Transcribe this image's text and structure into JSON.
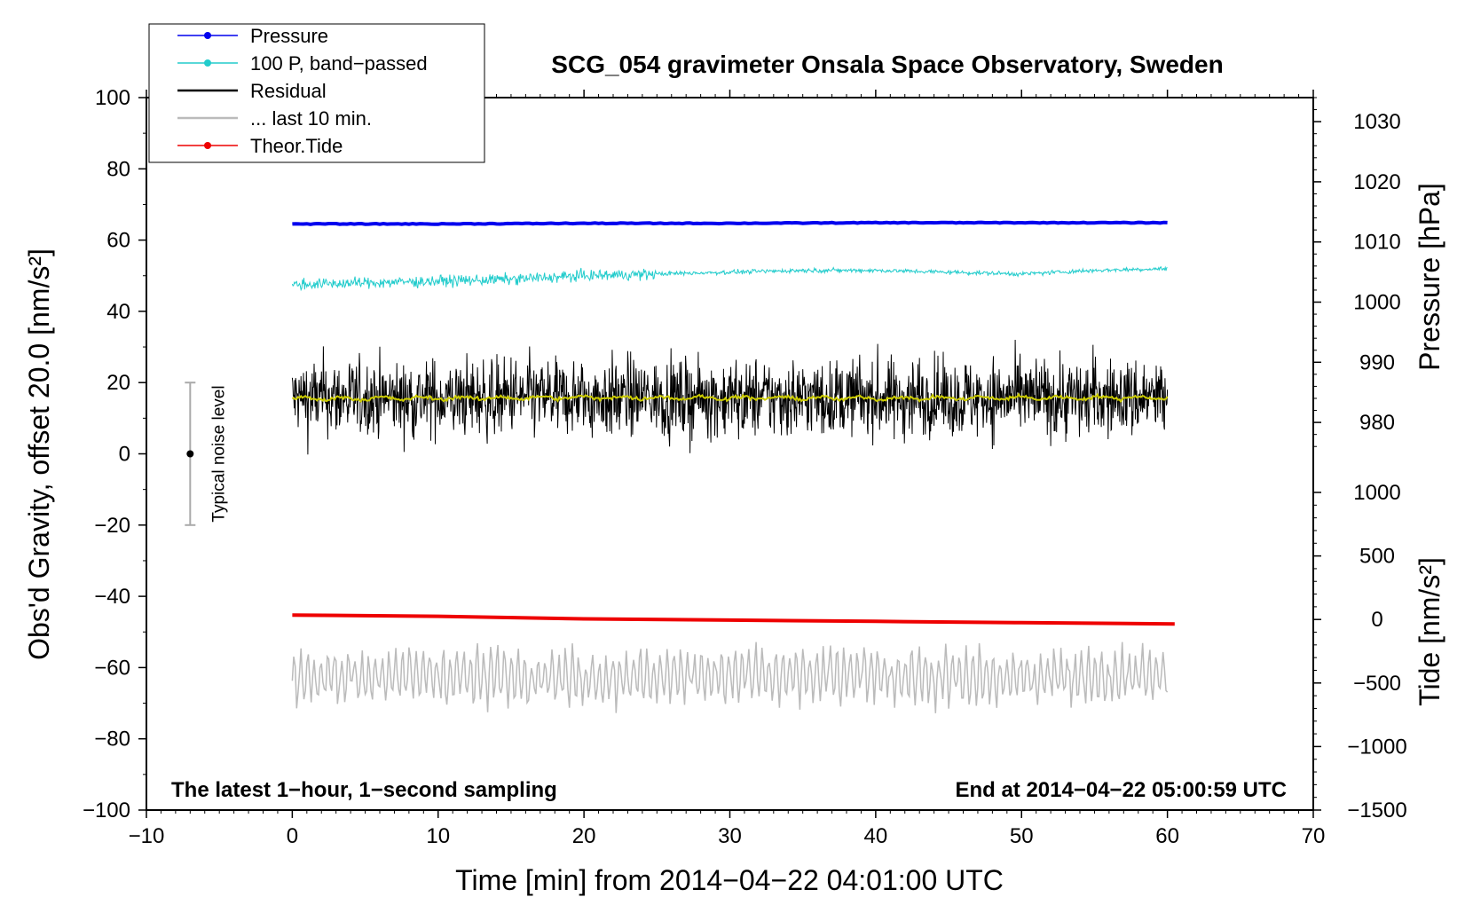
{
  "chart_data": {
    "type": "line",
    "title": "SCG_054 gravimeter Onsala Space Observatory, Sweden",
    "xlabel": "Time [min] from 2014−04−22 04:01:00 UTC",
    "ylabel_left": "Obs'd Gravity, offset 20.0 [nm/s²]",
    "ylabel_right_top": "Pressure [hPa]",
    "ylabel_right_bottom": "Tide [nm/s²]",
    "xlim": [
      -10,
      70
    ],
    "ylim": [
      -100,
      100
    ],
    "x_ticks": [
      -10,
      0,
      10,
      20,
      30,
      40,
      50,
      60,
      70
    ],
    "x_tick_labels": [
      "−10",
      "0",
      "10",
      "20",
      "30",
      "40",
      "50",
      "60",
      "70"
    ],
    "y_ticks": [
      -100,
      -80,
      -60,
      -40,
      -20,
      0,
      20,
      40,
      60,
      80,
      100
    ],
    "y_tick_labels": [
      "−100",
      "−80",
      "−60",
      "−40",
      "−20",
      "0",
      "20",
      "40",
      "60",
      "80",
      "100"
    ],
    "pressure_axis": {
      "range": [
        975,
        1034
      ],
      "ticks": [
        980,
        990,
        1000,
        1010,
        1020,
        1030
      ],
      "tick_labels": [
        "980",
        "990",
        "1000",
        "1010",
        "1020",
        "1030"
      ]
    },
    "tide_axis": {
      "range": [
        -1500,
        1000
      ],
      "ticks": [
        -1500,
        -1000,
        -500,
        0,
        500,
        1000
      ],
      "tick_labels": [
        "−1500",
        "−1000",
        "−500",
        "0",
        "500",
        "1000"
      ]
    },
    "series": [
      {
        "name": "Pressure",
        "color": "#0000ee",
        "style": "line-dot",
        "axis": "pressure",
        "x": [
          0,
          10,
          20,
          30,
          40,
          50,
          60
        ],
        "values": [
          1013.0,
          1013.0,
          1013.1,
          1013.1,
          1013.2,
          1013.2,
          1013.2
        ]
      },
      {
        "name": "100 P, band−passed",
        "color": "#22cccc",
        "style": "line-dot",
        "axis": "gravity",
        "x": [
          0,
          5,
          10,
          15,
          20,
          25,
          30,
          35,
          40,
          45,
          50,
          55,
          60
        ],
        "values": [
          47.5,
          48.0,
          48.5,
          49.0,
          50.0,
          50.5,
          51.0,
          51.5,
          51.5,
          51.0,
          50.5,
          51.5,
          52.0
        ]
      },
      {
        "name": "Residual",
        "color": "#000000",
        "style": "line",
        "axis": "gravity",
        "x": [
          0,
          10,
          20,
          30,
          40,
          50,
          60
        ],
        "values": [
          15.5,
          15.6,
          15.8,
          15.7,
          15.6,
          15.7,
          15.8
        ]
      },
      {
        "name": "... last 10 min.",
        "color": "#bbbbbb",
        "style": "line",
        "axis": "gravity",
        "x": [
          0,
          10,
          20,
          30,
          40,
          50,
          60
        ],
        "values": [
          -63,
          -62,
          -63,
          -62,
          -62,
          -63,
          -62
        ]
      },
      {
        "name": "Theor.Tide",
        "color": "#ee0000",
        "style": "line-dot",
        "axis": "tide",
        "x": [
          0,
          10,
          20,
          30,
          40,
          50,
          60.5
        ],
        "values": [
          35,
          25,
          5,
          -5,
          -15,
          -25,
          -35
        ]
      }
    ],
    "residual_noise_amplitude": 12,
    "smoothed_residual_color": "#cccc00",
    "noise_bar": {
      "label": "Typical noise level",
      "x": -7,
      "center": 0,
      "half_range": 20
    },
    "annotations": [
      "The latest 1−hour, 1−second sampling",
      "End at 2014−04−22 05:00:59 UTC"
    ],
    "legend_position": "top-left"
  }
}
